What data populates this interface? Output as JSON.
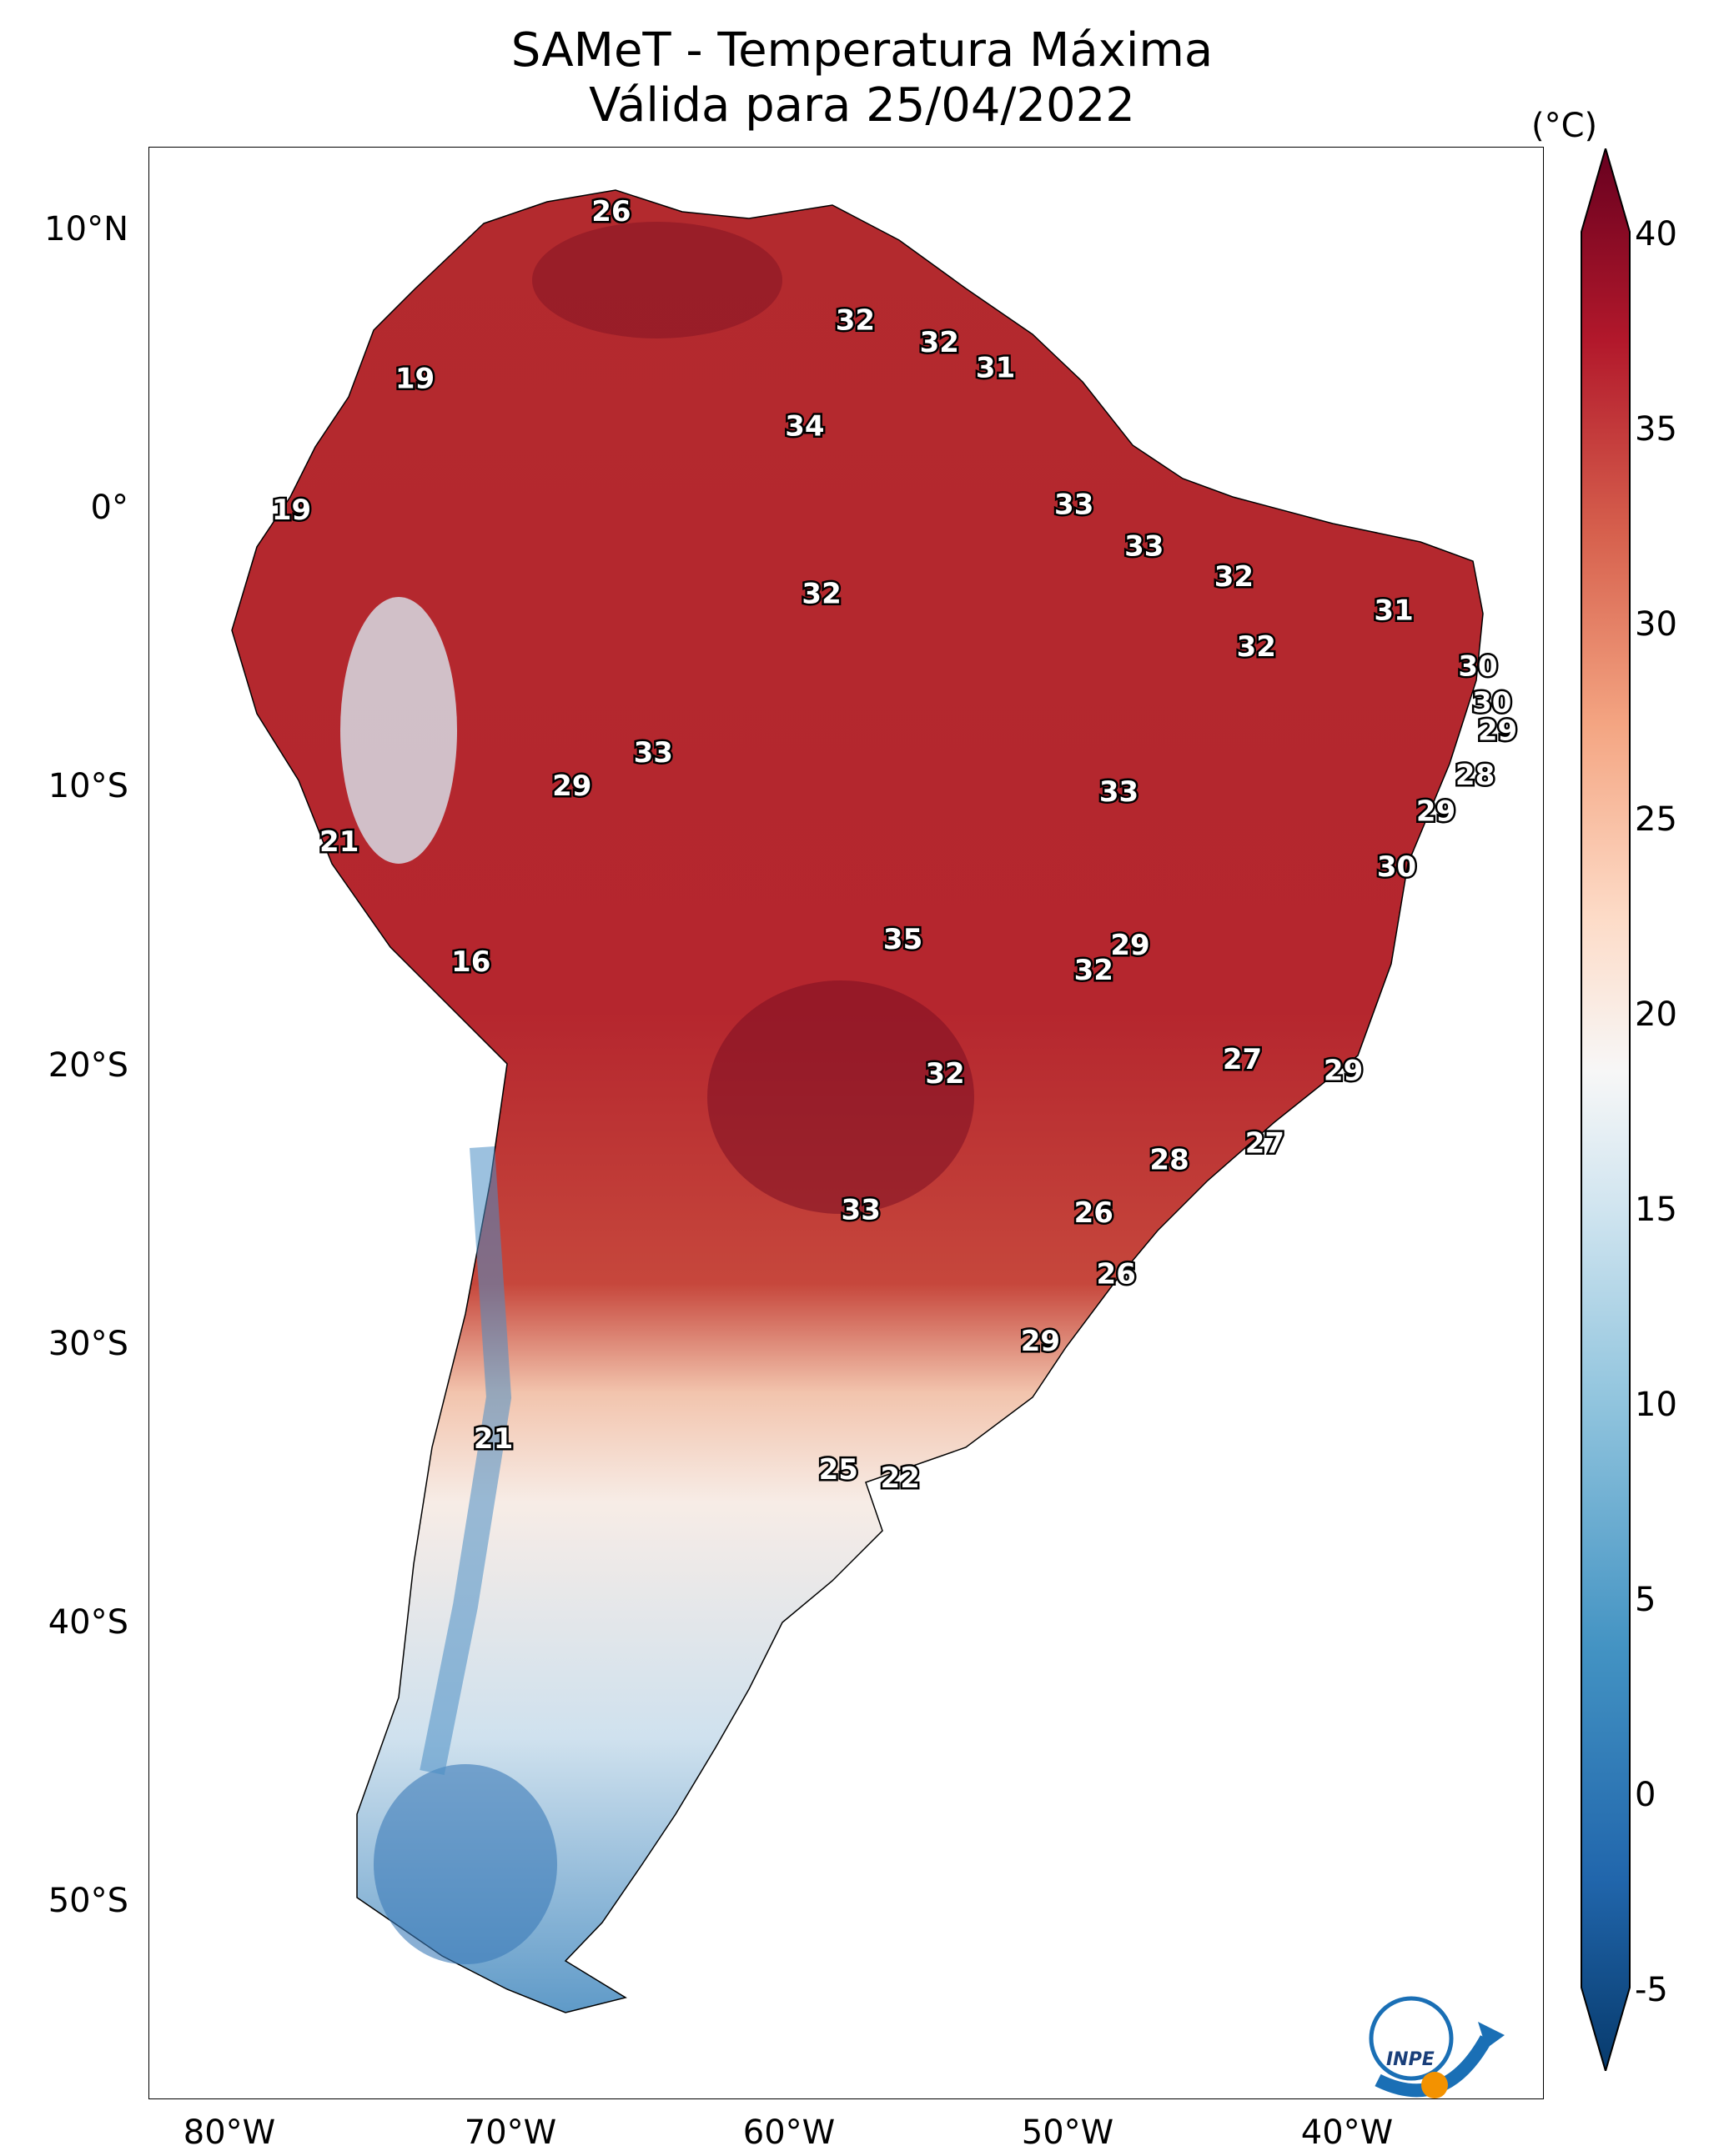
{
  "title": {
    "line1": "SAMeT - Temperatura Máxima",
    "line2": "Válida para 25/04/2022"
  },
  "axes": {
    "lat_labels": [
      "10°N",
      "0°",
      "10°S",
      "20°S",
      "30°S",
      "40°S",
      "50°S"
    ],
    "lon_labels": [
      "80°W",
      "70°W",
      "60°W",
      "50°W",
      "40°W"
    ]
  },
  "colorbar": {
    "unit": "(°C)",
    "ticks": [
      "40",
      "35",
      "30",
      "25",
      "20",
      "15",
      "10",
      "5",
      "0",
      "-5"
    ],
    "min": -5,
    "max": 40,
    "colors": [
      "#073a6c",
      "#2166ac",
      "#4393c3",
      "#92c5de",
      "#d1e5f0",
      "#f7f7f7",
      "#fddbc7",
      "#f4a582",
      "#d6604d",
      "#b2182b",
      "#67001f"
    ]
  },
  "logo": {
    "text": "INPE"
  },
  "values": [
    {
      "v": "26",
      "lon": -66.5,
      "lat": 10.5
    },
    {
      "v": "32",
      "lon": -57.8,
      "lat": 6.6
    },
    {
      "v": "32",
      "lon": -54.8,
      "lat": 5.8
    },
    {
      "v": "31",
      "lon": -52.8,
      "lat": 4.9
    },
    {
      "v": "19",
      "lon": -73.5,
      "lat": 4.5
    },
    {
      "v": "34",
      "lon": -59.6,
      "lat": 2.8
    },
    {
      "v": "33",
      "lon": -50.0,
      "lat": 0.0
    },
    {
      "v": "19",
      "lon": -77.9,
      "lat": -0.2
    },
    {
      "v": "33",
      "lon": -47.5,
      "lat": -1.5
    },
    {
      "v": "32",
      "lon": -44.3,
      "lat": -2.6
    },
    {
      "v": "32",
      "lon": -59.0,
      "lat": -3.2
    },
    {
      "v": "31",
      "lon": -38.6,
      "lat": -3.8
    },
    {
      "v": "32",
      "lon": -43.5,
      "lat": -5.1
    },
    {
      "v": "30",
      "lon": -35.6,
      "lat": -5.8
    },
    {
      "v": "30",
      "lon": -35.1,
      "lat": -7.1
    },
    {
      "v": "29",
      "lon": -34.9,
      "lat": -8.1
    },
    {
      "v": "33",
      "lon": -65.0,
      "lat": -8.9
    },
    {
      "v": "28",
      "lon": -35.7,
      "lat": -9.7
    },
    {
      "v": "29",
      "lon": -67.9,
      "lat": -10.1
    },
    {
      "v": "33",
      "lon": -48.4,
      "lat": -10.3
    },
    {
      "v": "29",
      "lon": -37.1,
      "lat": -11.0
    },
    {
      "v": "21",
      "lon": -76.2,
      "lat": -12.1
    },
    {
      "v": "30",
      "lon": -38.5,
      "lat": -13.0
    },
    {
      "v": "35",
      "lon": -56.1,
      "lat": -15.6
    },
    {
      "v": "29",
      "lon": -48.0,
      "lat": -15.8
    },
    {
      "v": "16",
      "lon": -71.5,
      "lat": -16.4
    },
    {
      "v": "32",
      "lon": -49.3,
      "lat": -16.7
    },
    {
      "v": "27",
      "lon": -44.0,
      "lat": -19.9
    },
    {
      "v": "29",
      "lon": -40.4,
      "lat": -20.3
    },
    {
      "v": "32",
      "lon": -54.6,
      "lat": -20.4
    },
    {
      "v": "27",
      "lon": -43.2,
      "lat": -22.9
    },
    {
      "v": "28",
      "lon": -46.6,
      "lat": -23.5
    },
    {
      "v": "33",
      "lon": -57.6,
      "lat": -25.3
    },
    {
      "v": "26",
      "lon": -49.3,
      "lat": -25.4
    },
    {
      "v": "26",
      "lon": -48.5,
      "lat": -27.6
    },
    {
      "v": "29",
      "lon": -51.2,
      "lat": -30.0
    },
    {
      "v": "21",
      "lon": -70.7,
      "lat": -33.5
    },
    {
      "v": "25",
      "lon": -58.4,
      "lat": -34.6
    },
    {
      "v": "22",
      "lon": -56.2,
      "lat": -34.9
    }
  ]
}
